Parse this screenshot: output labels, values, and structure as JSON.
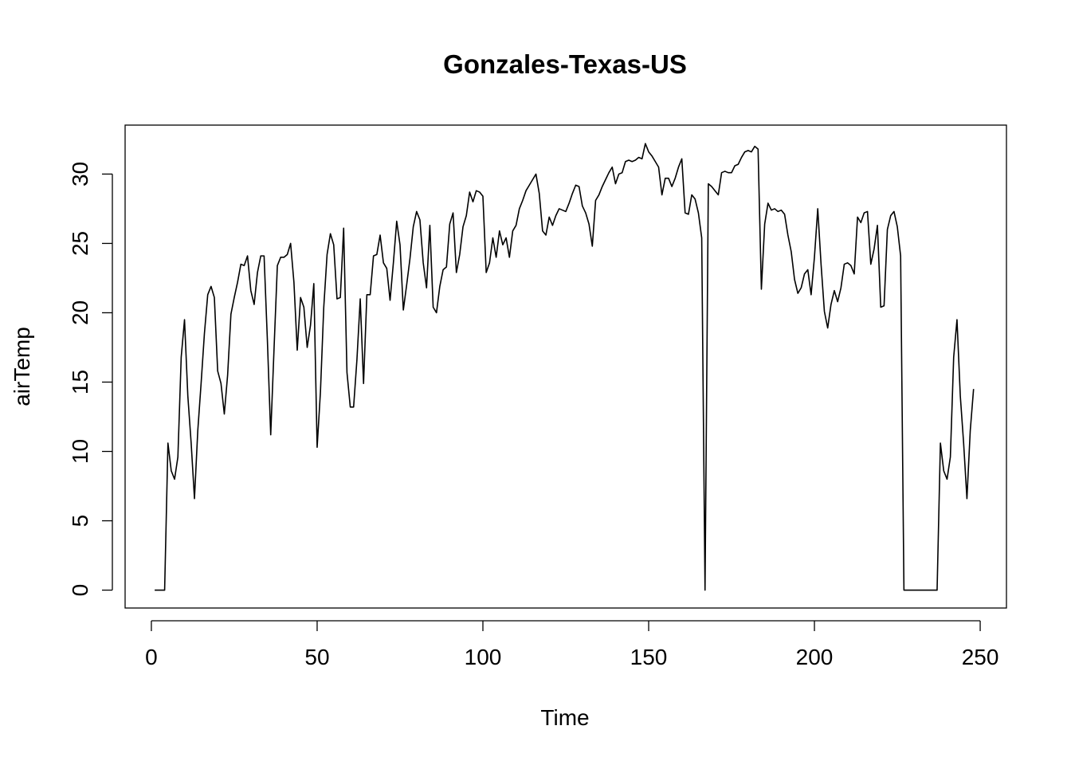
{
  "chart_data": {
    "type": "line",
    "title": "Gonzales-Texas-US",
    "xlabel": "Time",
    "ylabel": "airTemp",
    "xlim": [
      -7.92,
      257.92
    ],
    "ylim": [
      -1.29,
      33.53
    ],
    "x_ticks": [
      0,
      50,
      100,
      150,
      200,
      250
    ],
    "y_ticks": [
      0,
      5,
      10,
      15,
      20,
      25,
      30
    ],
    "grid": false,
    "legend": "none",
    "color": "#000000",
    "series": [
      {
        "x": [
          1,
          2,
          3,
          4,
          5,
          6,
          7,
          8,
          9,
          10,
          11,
          12,
          13,
          14,
          15,
          16,
          17,
          18,
          19,
          20,
          21,
          22,
          23,
          24,
          25,
          26,
          27,
          28,
          29,
          30,
          31,
          32,
          33,
          34,
          35,
          36,
          37,
          38,
          39,
          40,
          41,
          42,
          43,
          44,
          45,
          46,
          47,
          48,
          49,
          50,
          51,
          52,
          53,
          54,
          55,
          56,
          57,
          58,
          59,
          60,
          61,
          62,
          63,
          64,
          65,
          66,
          67,
          68,
          69,
          70,
          71,
          72,
          73,
          74,
          75,
          76,
          77,
          78,
          79,
          80,
          81,
          82,
          83,
          84,
          85,
          86,
          87,
          88,
          89,
          90,
          91,
          92,
          93,
          94,
          95,
          96,
          97,
          98,
          99,
          100,
          101,
          102,
          103,
          104,
          105,
          106,
          107,
          108,
          109,
          110,
          111,
          112,
          113,
          114,
          115,
          116,
          117,
          118,
          119,
          120,
          121,
          122,
          123,
          124,
          125,
          126,
          127,
          128,
          129,
          130,
          131,
          132,
          133,
          134,
          135,
          136,
          137,
          138,
          139,
          140,
          141,
          142,
          143,
          144,
          145,
          146,
          147,
          148,
          149,
          150,
          151,
          152,
          153,
          154,
          155,
          156,
          157,
          158,
          159,
          160,
          161,
          162,
          163,
          164,
          165,
          166,
          167,
          168,
          169,
          170,
          171,
          172,
          173,
          174,
          175,
          176,
          177,
          178,
          179,
          180,
          181,
          182,
          183,
          184,
          185,
          186,
          187,
          188,
          189,
          190,
          191,
          192,
          193,
          194,
          195,
          196,
          197,
          198,
          199,
          200,
          201,
          202,
          203,
          204,
          205,
          206,
          207,
          208,
          209,
          210,
          211,
          212,
          213,
          214,
          215,
          216,
          217,
          218,
          219,
          220,
          221,
          222,
          223,
          224,
          225,
          226,
          227,
          228,
          229,
          230,
          231,
          232,
          233,
          234,
          235,
          236,
          237,
          238,
          239,
          240,
          241,
          242,
          243,
          244,
          245,
          246,
          247,
          248
        ],
        "y": [
          0,
          0,
          0,
          0,
          10.6,
          8.6,
          8.0,
          9.6,
          16.8,
          19.5,
          14.0,
          10.6,
          6.6,
          11.5,
          14.9,
          18.5,
          21.3,
          21.9,
          21.1,
          15.8,
          14.9,
          12.7,
          15.5,
          19.9,
          21.1,
          22.2,
          23.5,
          23.4,
          24.1,
          21.6,
          20.6,
          22.9,
          24.1,
          24.1,
          18.0,
          11.2,
          17.4,
          23.4,
          24.0,
          24.0,
          24.2,
          25.0,
          22.2,
          17.3,
          21.1,
          20.4,
          17.5,
          19.1,
          22.1,
          10.3,
          14.3,
          20.4,
          24.2,
          25.7,
          24.9,
          21.0,
          21.1,
          26.1,
          15.7,
          13.2,
          13.2,
          16.6,
          21.0,
          14.9,
          21.3,
          21.3,
          24.1,
          24.2,
          25.6,
          23.6,
          23.2,
          20.9,
          23.6,
          26.6,
          24.9,
          20.2,
          22.0,
          23.9,
          26.2,
          27.3,
          26.7,
          23.6,
          21.8,
          26.3,
          20.4,
          20.0,
          21.9,
          23.1,
          23.3,
          26.4,
          27.2,
          22.9,
          24.2,
          26.2,
          27.0,
          28.7,
          28.0,
          28.8,
          28.7,
          28.4,
          22.9,
          23.6,
          25.4,
          24.0,
          25.9,
          24.9,
          25.4,
          24.0,
          25.9,
          26.3,
          27.5,
          28.1,
          28.8,
          29.2,
          29.6,
          30.0,
          28.6,
          25.9,
          25.6,
          26.9,
          26.3,
          27.0,
          27.5,
          27.4,
          27.3,
          27.9,
          28.6,
          29.2,
          29.1,
          27.7,
          27.2,
          26.4,
          24.8,
          28.1,
          28.5,
          29.1,
          29.6,
          30.1,
          30.5,
          29.3,
          30.0,
          30.1,
          30.9,
          31.0,
          30.9,
          31.0,
          31.2,
          31.1,
          32.2,
          31.6,
          31.3,
          30.9,
          30.5,
          28.5,
          29.7,
          29.7,
          29.1,
          29.7,
          30.5,
          31.1,
          27.2,
          27.1,
          28.5,
          28.2,
          27.2,
          25.4,
          0,
          29.3,
          29.1,
          28.8,
          28.5,
          30.1,
          30.2,
          30.1,
          30.1,
          30.6,
          30.7,
          31.2,
          31.6,
          31.7,
          31.6,
          32.0,
          31.8,
          21.7,
          26.4,
          27.9,
          27.4,
          27.5,
          27.3,
          27.4,
          27.1,
          25.6,
          24.4,
          22.4,
          21.4,
          21.8,
          22.8,
          23.1,
          21.3,
          24.0,
          27.5,
          23.5,
          20.1,
          18.9,
          20.6,
          21.6,
          20.8,
          21.8,
          23.5,
          23.6,
          23.4,
          22.8,
          26.9,
          26.5,
          27.2,
          27.3,
          23.5,
          24.6,
          26.3,
          20.4,
          20.5,
          26.0,
          27.0,
          27.3,
          26.2,
          24.1,
          0,
          0,
          0,
          0,
          0,
          0,
          0,
          0,
          0,
          0,
          0,
          10.6,
          8.6,
          8.0,
          9.6,
          16.8,
          19.5,
          14.0,
          10.6,
          6.6,
          11.5,
          14.5
        ]
      }
    ]
  }
}
